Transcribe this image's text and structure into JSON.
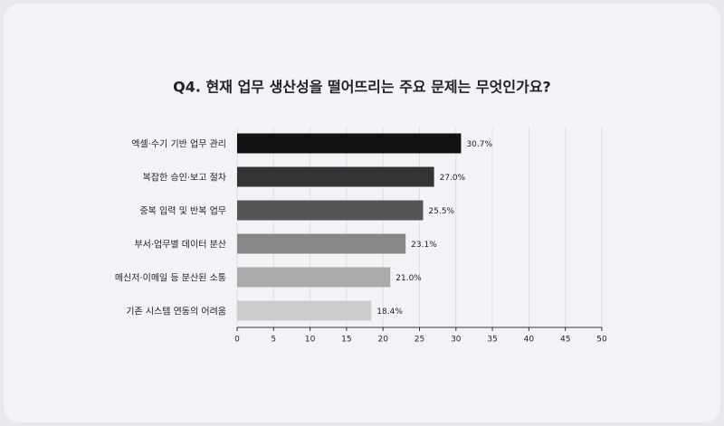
{
  "chart_data": {
    "type": "hbar",
    "title": "Q4. 현재 업무 생산성을 떨어뜨리는 주요 문제는 무엇인가요?",
    "categories": [
      "엑셀·수기 기반 업무 관리",
      "복잡한 승인·보고 절차",
      "중복 입력 및 반복 업무",
      "부서·업무별 데이터 분산",
      "메신저·이메일 등 분산된 소통",
      "기존 시스템 연동의 어려움"
    ],
    "values": [
      30.7,
      27.0,
      25.5,
      23.1,
      21.0,
      18.4
    ],
    "value_labels": [
      "30.7%",
      "27.0%",
      "25.5%",
      "23.1%",
      "21.0%",
      "18.4%"
    ],
    "colors": [
      "#111111",
      "#333333",
      "#555555",
      "#888888",
      "#aaaaaa",
      "#cccccc"
    ],
    "xlim": [
      0,
      50
    ],
    "xticks": [
      0,
      5,
      10,
      15,
      20,
      25,
      30,
      35,
      40,
      45,
      50
    ],
    "grid": true
  }
}
